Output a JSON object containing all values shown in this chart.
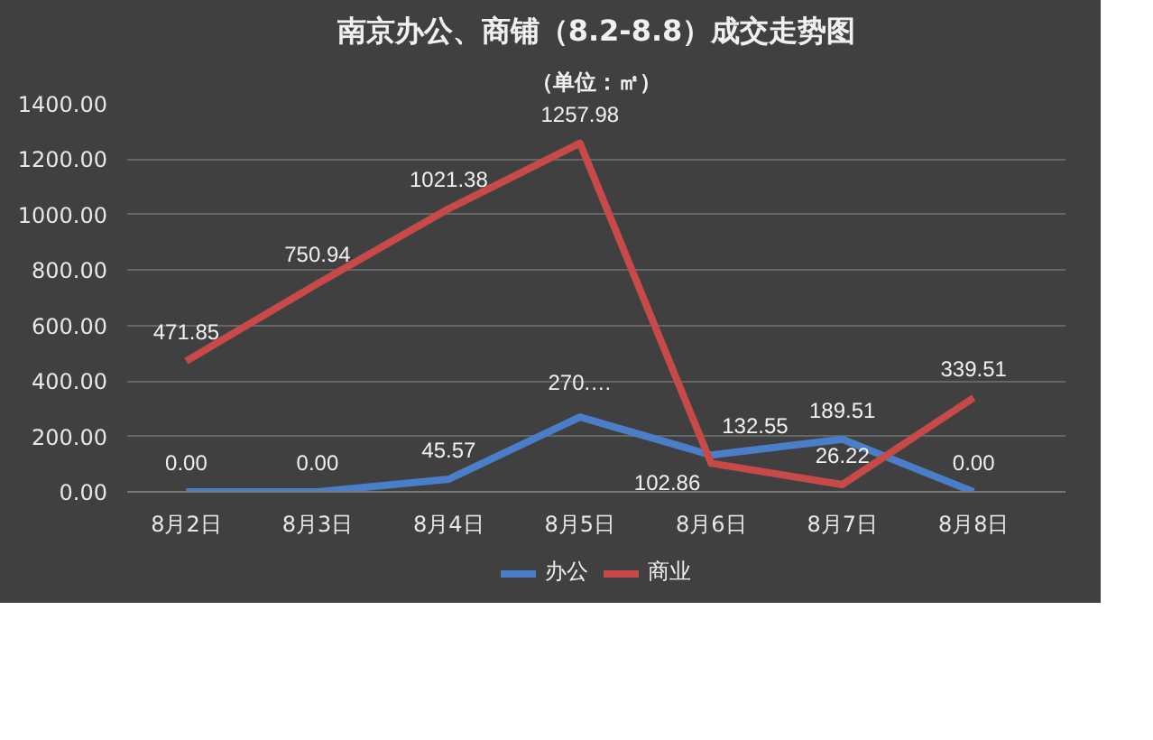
{
  "chart_data": {
    "type": "line",
    "title": "南京办公、商铺（8.2-8.8）成交走势图",
    "subtitle": "（单位：㎡）",
    "categories": [
      "8月2日",
      "8月3日",
      "8月4日",
      "8月5日",
      "8月6日",
      "8月7日",
      "8月8日"
    ],
    "series": [
      {
        "name": "办公",
        "color": "#4a7ec8",
        "values": [
          0,
          0,
          45.57,
          270,
          132.55,
          189.51,
          0
        ],
        "value_labels": [
          "0.00",
          "0.00",
          "45.57",
          "270.…",
          "132.55",
          "189.51",
          "0.00"
        ]
      },
      {
        "name": "商业",
        "color": "#c84a48",
        "values": [
          471.85,
          750.94,
          1021.38,
          1257.98,
          102.86,
          26.22,
          339.51
        ],
        "value_labels": [
          "471.85",
          "750.94",
          "1021.38",
          "1257.98",
          "102.86",
          "26.22",
          "339.51"
        ]
      }
    ],
    "ylim": [
      0,
      1400
    ],
    "yticks": [
      {
        "value": 0,
        "label": "0.00"
      },
      {
        "value": 200,
        "label": "200.00"
      },
      {
        "value": 400,
        "label": "400.00"
      },
      {
        "value": 600,
        "label": "600.00"
      },
      {
        "value": 800,
        "label": "800.00"
      },
      {
        "value": 1000,
        "label": "1000.00"
      },
      {
        "value": 1200,
        "label": "1200.00"
      },
      {
        "value": 1400,
        "label": "1400.00"
      }
    ],
    "grid": "y",
    "legend": "bottom",
    "marker": "none",
    "line_style": "solid"
  }
}
